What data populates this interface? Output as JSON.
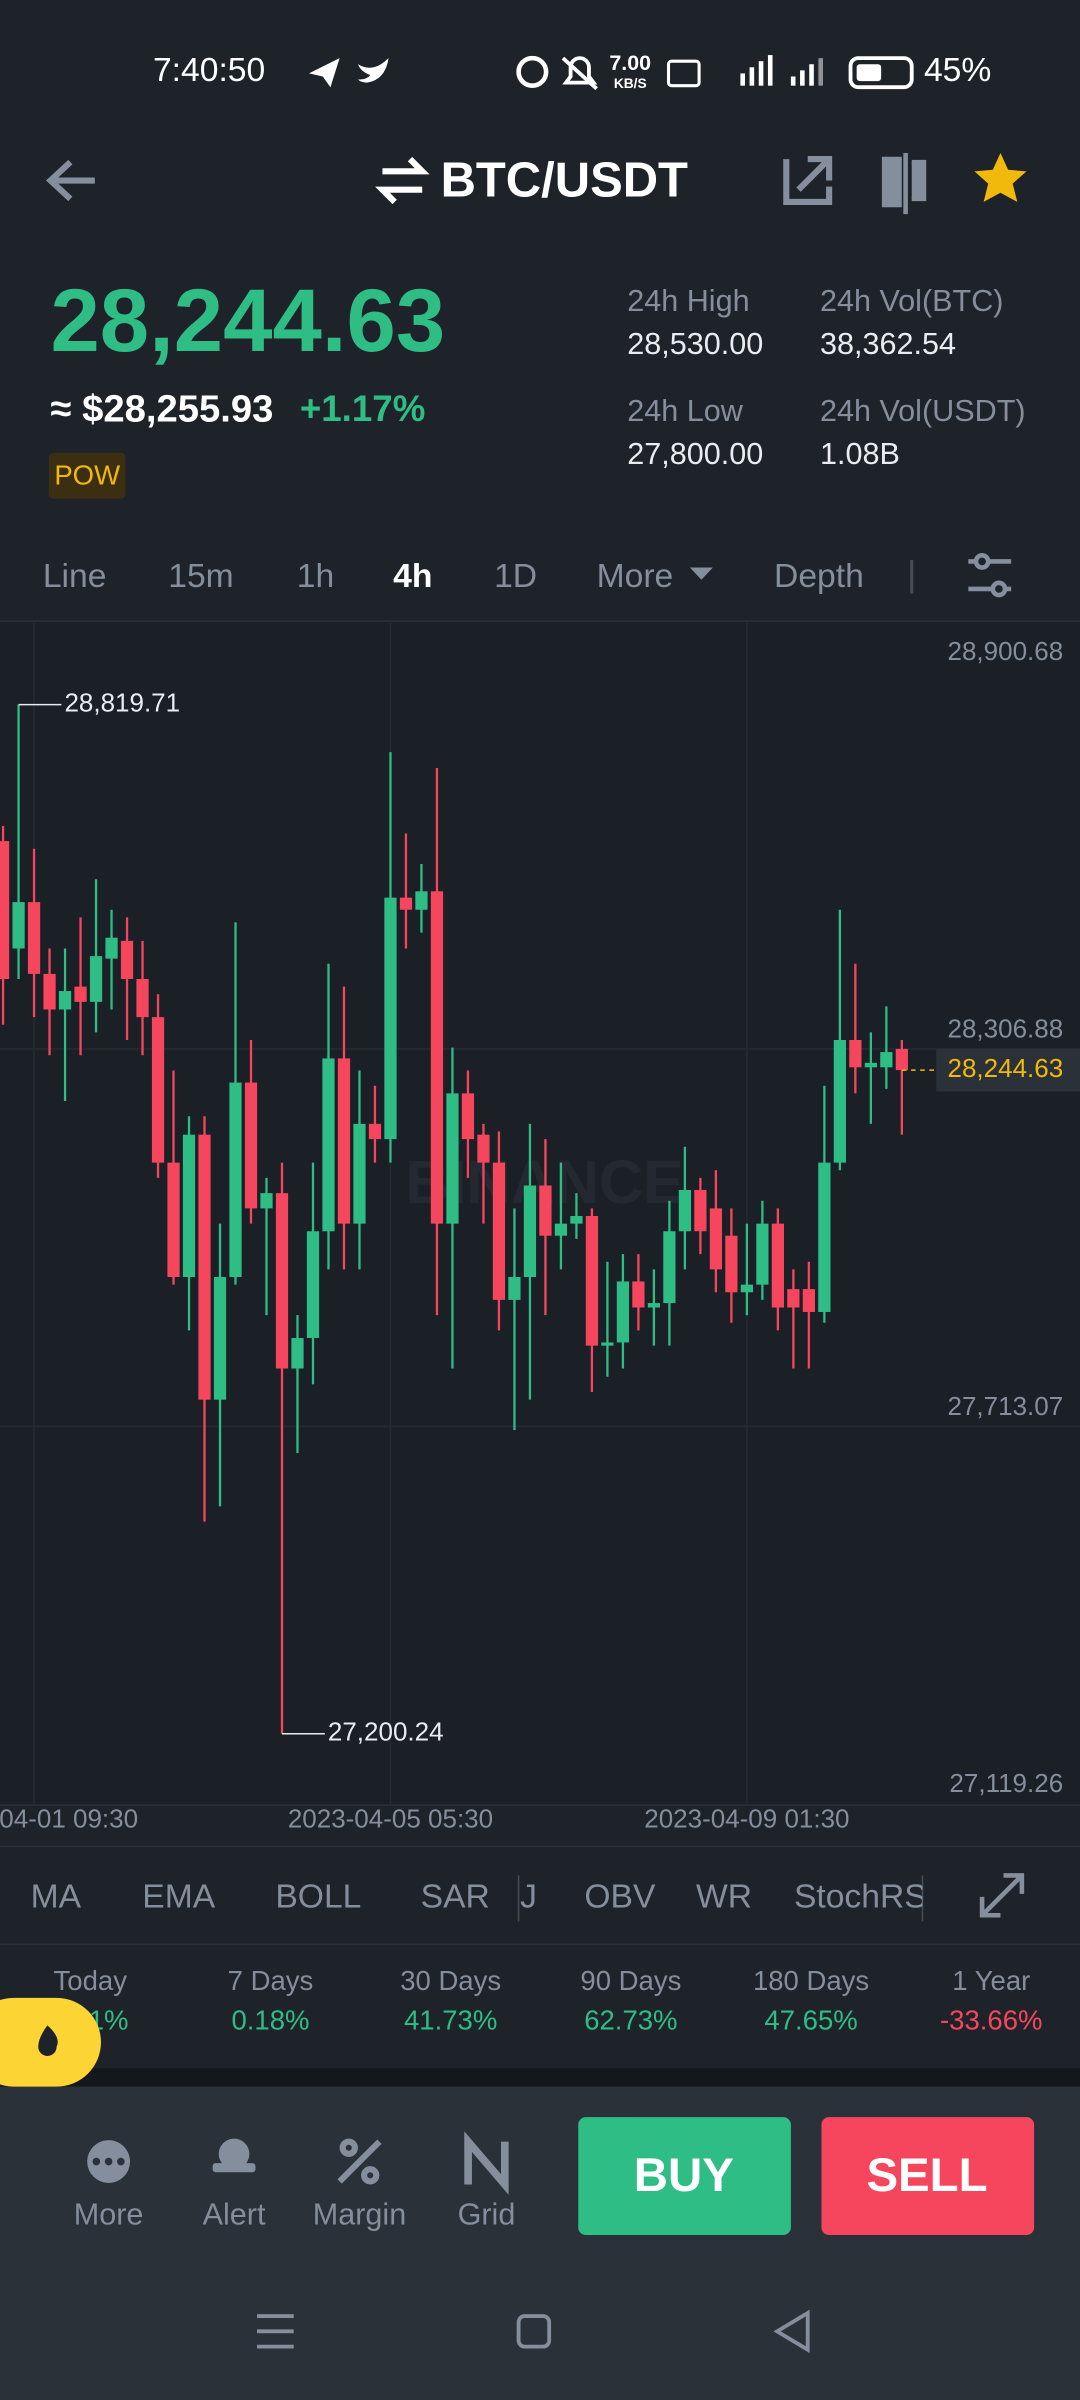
{
  "status": {
    "time": "7:40:50",
    "net_speed": "7.00",
    "net_unit": "KB/S",
    "battery": "45%"
  },
  "header": {
    "pair": "BTC/USDT"
  },
  "ticker": {
    "price": "28,244.63",
    "usd_price": "≈ $28,255.93",
    "change": "+1.17%",
    "tag": "POW",
    "stats": [
      {
        "label": "24h High",
        "value": "28,530.00"
      },
      {
        "label": "24h Vol(BTC)",
        "value": "38,362.54"
      },
      {
        "label": "24h Low",
        "value": "27,800.00"
      },
      {
        "label": "24h Vol(USDT)",
        "value": "1.08B"
      }
    ]
  },
  "tabs": [
    "Line",
    "15m",
    "1h",
    "4h",
    "1D",
    "More",
    "Depth"
  ],
  "chart": {
    "type": "candlestick",
    "watermark": "BINANCE",
    "open": [
      28605,
      28436,
      28509,
      28396,
      28340,
      28376,
      28352,
      28420,
      28448,
      28388,
      28328,
      28099,
      27919,
      28143,
      27726,
      27919,
      28225,
      28027,
      28051,
      27775,
      27823,
      27991,
      28263,
      28003,
      28160,
      28136,
      28516,
      28497,
      28526,
      28003,
      28208,
      28143,
      28099,
      27883,
      27919,
      28063,
      27984,
      28003,
      28015,
      27811,
      27816,
      27912,
      27871,
      27878,
      27991,
      28056,
      28027,
      27984,
      27895,
      27907,
      28003,
      27900,
      27900,
      27864,
      28099,
      28292,
      28249,
      28249,
      28278
    ],
    "high": [
      28629,
      28819.71,
      28593,
      28436,
      28436,
      28485,
      28545,
      28497,
      28485,
      28448,
      28364,
      28244,
      28172,
      28172,
      28003,
      28477,
      28292,
      28075,
      28099,
      27859,
      28099,
      28412,
      28376,
      28244,
      28220,
      28745,
      28617,
      28569,
      28720,
      28280,
      28244,
      28160,
      28148,
      28027,
      28160,
      28136,
      28099,
      28051,
      28027,
      27943,
      27955,
      27955,
      27931,
      28039,
      28124,
      28075,
      28087,
      28027,
      28003,
      28039,
      28027,
      27931,
      27943,
      28220,
      28497,
      28412,
      28304,
      28345,
      28292
    ],
    "low": [
      28316,
      28388,
      28328,
      28268,
      28196,
      28268,
      28304,
      28340,
      28292,
      28268,
      28075,
      27907,
      27835,
      27534,
      27558,
      27907,
      28003,
      27859,
      27200.24,
      27642,
      27750,
      27931,
      27931,
      27931,
      28099,
      28099,
      28436,
      28461,
      27859,
      27775,
      28075,
      28003,
      27835,
      27678,
      27726,
      27859,
      27931,
      27979,
      27738,
      27762,
      27775,
      27835,
      27811,
      27811,
      27931,
      27955,
      27895,
      27847,
      27859,
      27883,
      27835,
      27775,
      27775,
      27847,
      28087,
      28208,
      28160,
      28215,
      28143
    ],
    "close": [
      28388,
      28509,
      28396,
      28340,
      28369,
      28352,
      28424,
      28453,
      28388,
      28328,
      28099,
      27919,
      28143,
      27726,
      27919,
      28225,
      28027,
      28051,
      27775,
      27823,
      27991,
      28263,
      28003,
      28160,
      28136,
      28516,
      28497,
      28526,
      28003,
      28208,
      28136,
      28099,
      27883,
      27919,
      28063,
      27984,
      28003,
      28015,
      27811,
      27816,
      27912,
      27871,
      27878,
      27991,
      28056,
      27991,
      27931,
      27895,
      27907,
      28003,
      27871,
      27871,
      27864,
      28099,
      28292,
      28249,
      28256,
      28273,
      28244.63
    ],
    "ylim": [
      27119.26,
      28900.68
    ],
    "yticks": [
      {
        "value": 28900.68,
        "label": "28,900.68"
      },
      {
        "value": 28306.88,
        "label": "28,306.88"
      },
      {
        "value": 27713.07,
        "label": "27,713.07"
      },
      {
        "value": 27119.26,
        "label": "27,119.26"
      }
    ],
    "xticks": [
      {
        "value": 2,
        "label": "04-01 09:30"
      },
      {
        "value": 25,
        "label": "2023-04-05 05:30"
      },
      {
        "value": 48,
        "label": "2023-04-09 01:30"
      }
    ],
    "high_label": "28,819.71",
    "low_label": "27,200.24",
    "last_price": {
      "value": 28244.63,
      "label": "28,244.63"
    },
    "up_color": "#2ebd85",
    "down_color": "#f6465d",
    "grid": true
  },
  "indicators": [
    "MA",
    "EMA",
    "BOLL",
    "SAR",
    "J",
    "OBV",
    "WR",
    "StochRS"
  ],
  "performance": [
    {
      "label": "Today",
      "value": "1%"
    },
    {
      "label": "7 Days",
      "value": "0.18%"
    },
    {
      "label": "30 Days",
      "value": "41.73%"
    },
    {
      "label": "90 Days",
      "value": "62.73%"
    },
    {
      "label": "180 Days",
      "value": "47.65%"
    },
    {
      "label": "1 Year",
      "value": "-33.66%"
    }
  ],
  "actions": [
    "More",
    "Alert",
    "Margin",
    "Grid"
  ],
  "buttons": {
    "buy": "BUY",
    "sell": "SELL"
  }
}
